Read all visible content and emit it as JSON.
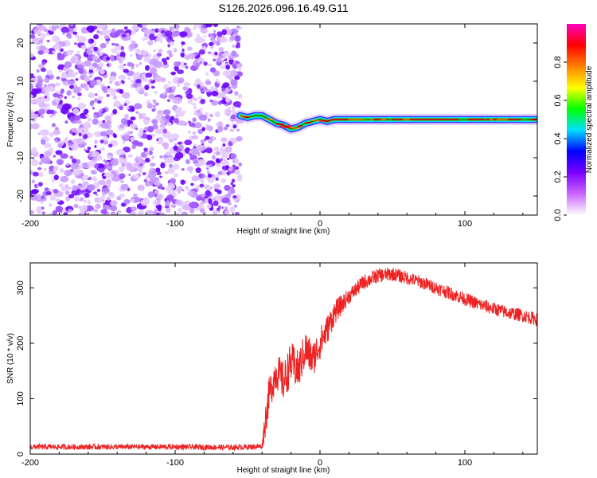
{
  "chart_data": [
    {
      "type": "heatmap",
      "title": "S126.2026.096.16.49.G11",
      "xlabel": "Height of straight line (km)",
      "ylabel": "Frequency (Hz)",
      "xlim": [
        -200,
        150
      ],
      "ylim": [
        -25,
        25
      ],
      "xticks": [
        -200,
        -100,
        0,
        100
      ],
      "yticks": [
        -20,
        -10,
        0,
        10,
        20
      ],
      "noise_region_x": [
        -200,
        -55
      ],
      "signal_track": {
        "x": [
          -55,
          -50,
          -45,
          -40,
          -35,
          -30,
          -25,
          -20,
          -15,
          -10,
          -5,
          0,
          5,
          10,
          20,
          40,
          60,
          80,
          100,
          120,
          150
        ],
        "freq": [
          1,
          0.5,
          1,
          1,
          0,
          -1,
          -1.5,
          -2.5,
          -2,
          -1,
          -0.5,
          0,
          -0.5,
          0,
          0,
          0,
          0,
          0,
          0,
          0,
          0
        ]
      },
      "colorbar": {
        "label": "Normalized spectral amplitude",
        "ticks": [
          0.0,
          0.2,
          0.4,
          0.6,
          0.8
        ],
        "range": [
          0,
          1
        ],
        "colors": [
          "#ffffff",
          "#cc66ff",
          "#7a00ff",
          "#0000ff",
          "#00e0ff",
          "#00ff00",
          "#ffff00",
          "#ff8000",
          "#ff0000",
          "#ff00c0"
        ]
      }
    },
    {
      "type": "line",
      "xlabel": "Height of straight line (km)",
      "ylabel": "SNR (10 * v/v)",
      "xlim": [
        -200,
        150
      ],
      "ylim": [
        0,
        345
      ],
      "xticks": [
        -200,
        -100,
        0,
        100
      ],
      "yticks": [
        0,
        100,
        200,
        300
      ],
      "line_color": "#ee2222",
      "trend": {
        "x": [
          -200,
          -150,
          -100,
          -60,
          -40,
          -38,
          -35,
          -30,
          -25,
          -20,
          -15,
          -10,
          -5,
          0,
          5,
          10,
          20,
          30,
          40,
          50,
          60,
          70,
          80,
          90,
          100,
          110,
          120,
          130,
          140,
          150
        ],
        "y": [
          13,
          13,
          13,
          12,
          14,
          55,
          110,
          150,
          130,
          165,
          150,
          190,
          170,
          200,
          225,
          255,
          285,
          310,
          322,
          325,
          318,
          310,
          300,
          290,
          280,
          270,
          262,
          255,
          250,
          243
        ]
      },
      "noise": {
        "x": [
          -200,
          -40,
          -38,
          -20,
          0,
          20,
          60,
          150
        ],
        "amplitude": [
          5,
          5,
          30,
          38,
          30,
          14,
          12,
          12
        ]
      }
    }
  ]
}
